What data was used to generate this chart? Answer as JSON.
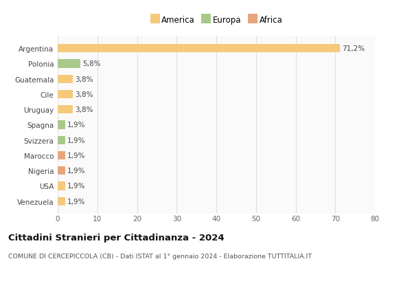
{
  "categories": [
    "Venezuela",
    "USA",
    "Nigeria",
    "Marocco",
    "Svizzera",
    "Spagna",
    "Uruguay",
    "Cile",
    "Guatemala",
    "Polonia",
    "Argentina"
  ],
  "values": [
    1.9,
    1.9,
    1.9,
    1.9,
    1.9,
    1.9,
    3.8,
    3.8,
    3.8,
    5.8,
    71.2
  ],
  "colors": [
    "#f5c97a",
    "#f5c97a",
    "#e8a57c",
    "#e8a57c",
    "#a8c98a",
    "#a8c98a",
    "#f5c97a",
    "#f5c97a",
    "#f5c97a",
    "#a8c98a",
    "#f5c97a"
  ],
  "labels": [
    "1,9%",
    "1,9%",
    "1,9%",
    "1,9%",
    "1,9%",
    "1,9%",
    "3,8%",
    "3,8%",
    "3,8%",
    "5,8%",
    "71,2%"
  ],
  "xlim": [
    0,
    80
  ],
  "xticks": [
    0,
    10,
    20,
    30,
    40,
    50,
    60,
    70,
    80
  ],
  "legend_items": [
    {
      "label": "America",
      "color": "#f5c97a"
    },
    {
      "label": "Europa",
      "color": "#a8c98a"
    },
    {
      "label": "Africa",
      "color": "#e8a57c"
    }
  ],
  "title": "Cittadini Stranieri per Cittadinanza - 2024",
  "subtitle": "COMUNE DI CERCEPICCOLA (CB) - Dati ISTAT al 1° gennaio 2024 - Elaborazione TUTTITALIA.IT",
  "background_color": "#ffffff",
  "plot_bg_color": "#fafafa",
  "grid_color": "#e0e0e0",
  "bar_height": 0.55,
  "label_fontsize": 7.5,
  "tick_fontsize": 7.5
}
